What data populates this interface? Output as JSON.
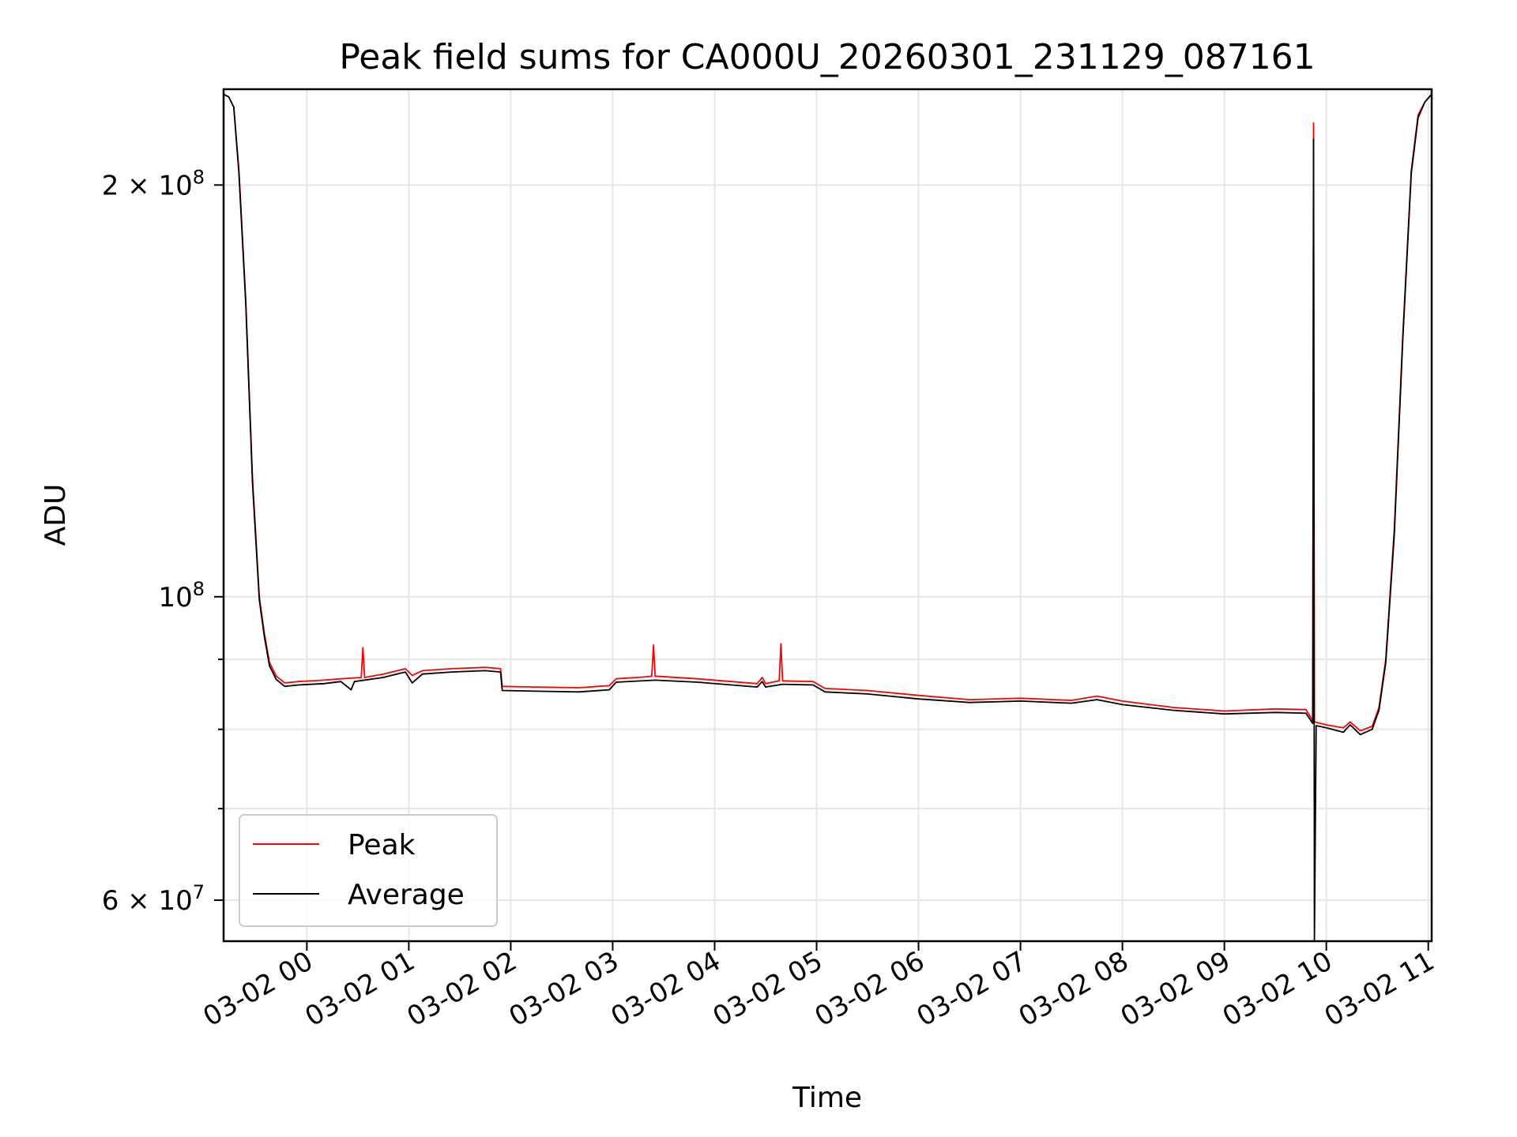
{
  "chart_data": {
    "type": "line",
    "title": "Peak field sums for CA000U_20260301_231129_087161",
    "xlabel": "Time",
    "ylabel": "ADU",
    "y_scale": "log",
    "ylim": [
      56000000,
      235000000
    ],
    "xlim": [
      "2026-03-01 23:11",
      "2026-03-02 11:02"
    ],
    "grid": true,
    "legend_position": "lower-left",
    "x_ticks": [
      {
        "value": "2026-03-02 00:00",
        "label": "03-02 00"
      },
      {
        "value": "2026-03-02 01:00",
        "label": "03-02 01"
      },
      {
        "value": "2026-03-02 02:00",
        "label": "03-02 02"
      },
      {
        "value": "2026-03-02 03:00",
        "label": "03-02 03"
      },
      {
        "value": "2026-03-02 04:00",
        "label": "03-02 04"
      },
      {
        "value": "2026-03-02 05:00",
        "label": "03-02 05"
      },
      {
        "value": "2026-03-02 06:00",
        "label": "03-02 06"
      },
      {
        "value": "2026-03-02 07:00",
        "label": "03-02 07"
      },
      {
        "value": "2026-03-02 08:00",
        "label": "03-02 08"
      },
      {
        "value": "2026-03-02 09:00",
        "label": "03-02 09"
      },
      {
        "value": "2026-03-02 10:00",
        "label": "03-02 10"
      },
      {
        "value": "2026-03-02 11:00",
        "label": "03-02 11"
      }
    ],
    "y_major_ticks": [
      {
        "value": 60000000,
        "base": "6 × 10",
        "exp": "7"
      },
      {
        "value": 100000000,
        "base": "10",
        "exp": "8"
      },
      {
        "value": 200000000,
        "base": "2 × 10",
        "exp": "8"
      }
    ],
    "y_minor_ticks": [
      70000000,
      80000000,
      90000000
    ],
    "series": [
      {
        "name": "Peak",
        "color": "#ff0000",
        "points": [
          [
            "2026-03-01 23:11",
            233000000
          ],
          [
            "2026-03-01 23:14",
            232000000
          ],
          [
            "2026-03-01 23:17",
            228000000
          ],
          [
            "2026-03-01 23:20",
            205000000
          ],
          [
            "2026-03-01 23:24",
            165000000
          ],
          [
            "2026-03-01 23:28",
            122000000
          ],
          [
            "2026-03-01 23:32",
            100000000
          ],
          [
            "2026-03-01 23:35",
            94000000
          ],
          [
            "2026-03-01 23:38",
            89500000
          ],
          [
            "2026-03-01 23:42",
            87500000
          ],
          [
            "2026-03-01 23:47",
            86500000
          ],
          [
            "2026-03-01 23:55",
            86700000
          ],
          [
            "2026-03-02 00:10",
            86900000
          ],
          [
            "2026-03-02 00:20",
            87100000
          ],
          [
            "2026-03-02 00:32",
            87300000
          ],
          [
            "2026-03-02 00:33",
            91800000
          ],
          [
            "2026-03-02 00:34",
            87300000
          ],
          [
            "2026-03-02 00:45",
            87800000
          ],
          [
            "2026-03-02 00:58",
            88600000
          ],
          [
            "2026-03-02 01:02",
            87600000
          ],
          [
            "2026-03-02 01:08",
            88300000
          ],
          [
            "2026-03-02 01:25",
            88600000
          ],
          [
            "2026-03-02 01:45",
            88800000
          ],
          [
            "2026-03-02 01:54",
            88600000
          ],
          [
            "2026-03-02 01:55",
            86000000
          ],
          [
            "2026-03-02 02:15",
            85900000
          ],
          [
            "2026-03-02 02:40",
            85800000
          ],
          [
            "2026-03-02 02:58",
            86100000
          ],
          [
            "2026-03-02 03:02",
            87100000
          ],
          [
            "2026-03-02 03:20",
            87400000
          ],
          [
            "2026-03-02 03:23",
            87500000
          ],
          [
            "2026-03-02 03:24",
            92200000
          ],
          [
            "2026-03-02 03:25",
            87500000
          ],
          [
            "2026-03-02 03:50",
            87100000
          ],
          [
            "2026-03-02 04:10",
            86700000
          ],
          [
            "2026-03-02 04:25",
            86400000
          ],
          [
            "2026-03-02 04:28",
            87300000
          ],
          [
            "2026-03-02 04:30",
            86400000
          ],
          [
            "2026-03-02 04:38",
            86800000
          ],
          [
            "2026-03-02 04:39",
            92400000
          ],
          [
            "2026-03-02 04:40",
            86800000
          ],
          [
            "2026-03-02 04:58",
            86700000
          ],
          [
            "2026-03-02 05:05",
            85700000
          ],
          [
            "2026-03-02 05:30",
            85400000
          ],
          [
            "2026-03-02 06:00",
            84700000
          ],
          [
            "2026-03-02 06:30",
            84100000
          ],
          [
            "2026-03-02 07:00",
            84300000
          ],
          [
            "2026-03-02 07:30",
            84000000
          ],
          [
            "2026-03-02 07:45",
            84600000
          ],
          [
            "2026-03-02 08:00",
            83900000
          ],
          [
            "2026-03-02 08:30",
            83000000
          ],
          [
            "2026-03-02 09:00",
            82500000
          ],
          [
            "2026-03-02 09:30",
            82800000
          ],
          [
            "2026-03-02 09:48",
            82700000
          ],
          [
            "2026-03-02 09:52",
            81200000
          ],
          [
            "2026-03-02 09:52.5",
            222000000
          ],
          [
            "2026-03-02 09:53",
            81000000
          ],
          [
            "2026-03-02 10:00",
            80600000
          ],
          [
            "2026-03-02 10:10",
            80200000
          ],
          [
            "2026-03-02 10:14",
            81000000
          ],
          [
            "2026-03-02 10:20",
            79800000
          ],
          [
            "2026-03-02 10:27",
            80400000
          ],
          [
            "2026-03-02 10:31",
            83000000
          ],
          [
            "2026-03-02 10:35",
            90000000
          ],
          [
            "2026-03-02 10:40",
            112000000
          ],
          [
            "2026-03-02 10:45",
            155000000
          ],
          [
            "2026-03-02 10:50",
            205000000
          ],
          [
            "2026-03-02 10:54",
            225000000
          ],
          [
            "2026-03-02 10:58",
            230000000
          ],
          [
            "2026-03-02 11:02",
            233000000
          ]
        ]
      },
      {
        "name": "Average",
        "color": "#000000",
        "points": [
          [
            "2026-03-01 23:11",
            233000000
          ],
          [
            "2026-03-01 23:14",
            232000000
          ],
          [
            "2026-03-01 23:17",
            228000000
          ],
          [
            "2026-03-01 23:20",
            204000000
          ],
          [
            "2026-03-01 23:24",
            164000000
          ],
          [
            "2026-03-01 23:28",
            121000000
          ],
          [
            "2026-03-01 23:32",
            99500000
          ],
          [
            "2026-03-01 23:35",
            93500000
          ],
          [
            "2026-03-01 23:38",
            89000000
          ],
          [
            "2026-03-01 23:42",
            87000000
          ],
          [
            "2026-03-01 23:47",
            86000000
          ],
          [
            "2026-03-01 23:55",
            86200000
          ],
          [
            "2026-03-02 00:10",
            86400000
          ],
          [
            "2026-03-02 00:20",
            86700000
          ],
          [
            "2026-03-02 00:26",
            85500000
          ],
          [
            "2026-03-02 00:28",
            86700000
          ],
          [
            "2026-03-02 00:45",
            87300000
          ],
          [
            "2026-03-02 00:58",
            88100000
          ],
          [
            "2026-03-02 01:02",
            86500000
          ],
          [
            "2026-03-02 01:08",
            87800000
          ],
          [
            "2026-03-02 01:25",
            88100000
          ],
          [
            "2026-03-02 01:45",
            88300000
          ],
          [
            "2026-03-02 01:54",
            88100000
          ],
          [
            "2026-03-02 01:55",
            85400000
          ],
          [
            "2026-03-02 02:15",
            85300000
          ],
          [
            "2026-03-02 02:40",
            85200000
          ],
          [
            "2026-03-02 02:58",
            85500000
          ],
          [
            "2026-03-02 03:02",
            86600000
          ],
          [
            "2026-03-02 03:25",
            86900000
          ],
          [
            "2026-03-02 03:50",
            86600000
          ],
          [
            "2026-03-02 04:10",
            86200000
          ],
          [
            "2026-03-02 04:25",
            85900000
          ],
          [
            "2026-03-02 04:28",
            86700000
          ],
          [
            "2026-03-02 04:30",
            85900000
          ],
          [
            "2026-03-02 04:40",
            86300000
          ],
          [
            "2026-03-02 04:58",
            86200000
          ],
          [
            "2026-03-02 05:05",
            85200000
          ],
          [
            "2026-03-02 05:30",
            84900000
          ],
          [
            "2026-03-02 06:00",
            84200000
          ],
          [
            "2026-03-02 06:30",
            83700000
          ],
          [
            "2026-03-02 07:00",
            83900000
          ],
          [
            "2026-03-02 07:30",
            83600000
          ],
          [
            "2026-03-02 07:45",
            84100000
          ],
          [
            "2026-03-02 08:00",
            83400000
          ],
          [
            "2026-03-02 08:30",
            82600000
          ],
          [
            "2026-03-02 09:00",
            82100000
          ],
          [
            "2026-03-02 09:30",
            82300000
          ],
          [
            "2026-03-02 09:48",
            82200000
          ],
          [
            "2026-03-02 09:52",
            80800000
          ],
          [
            "2026-03-02 09:52.5",
            216000000
          ],
          [
            "2026-03-02 09:53",
            56000000
          ],
          [
            "2026-03-02 09:54",
            80500000
          ],
          [
            "2026-03-02 10:00",
            80200000
          ],
          [
            "2026-03-02 10:10",
            79600000
          ],
          [
            "2026-03-02 10:14",
            80600000
          ],
          [
            "2026-03-02 10:20",
            79300000
          ],
          [
            "2026-03-02 10:27",
            80000000
          ],
          [
            "2026-03-02 10:31",
            82600000
          ],
          [
            "2026-03-02 10:35",
            89500000
          ],
          [
            "2026-03-02 10:40",
            111000000
          ],
          [
            "2026-03-02 10:45",
            154000000
          ],
          [
            "2026-03-02 10:50",
            204000000
          ],
          [
            "2026-03-02 10:54",
            224000000
          ],
          [
            "2026-03-02 10:58",
            230000000
          ],
          [
            "2026-03-02 11:02",
            233000000
          ]
        ]
      }
    ]
  }
}
